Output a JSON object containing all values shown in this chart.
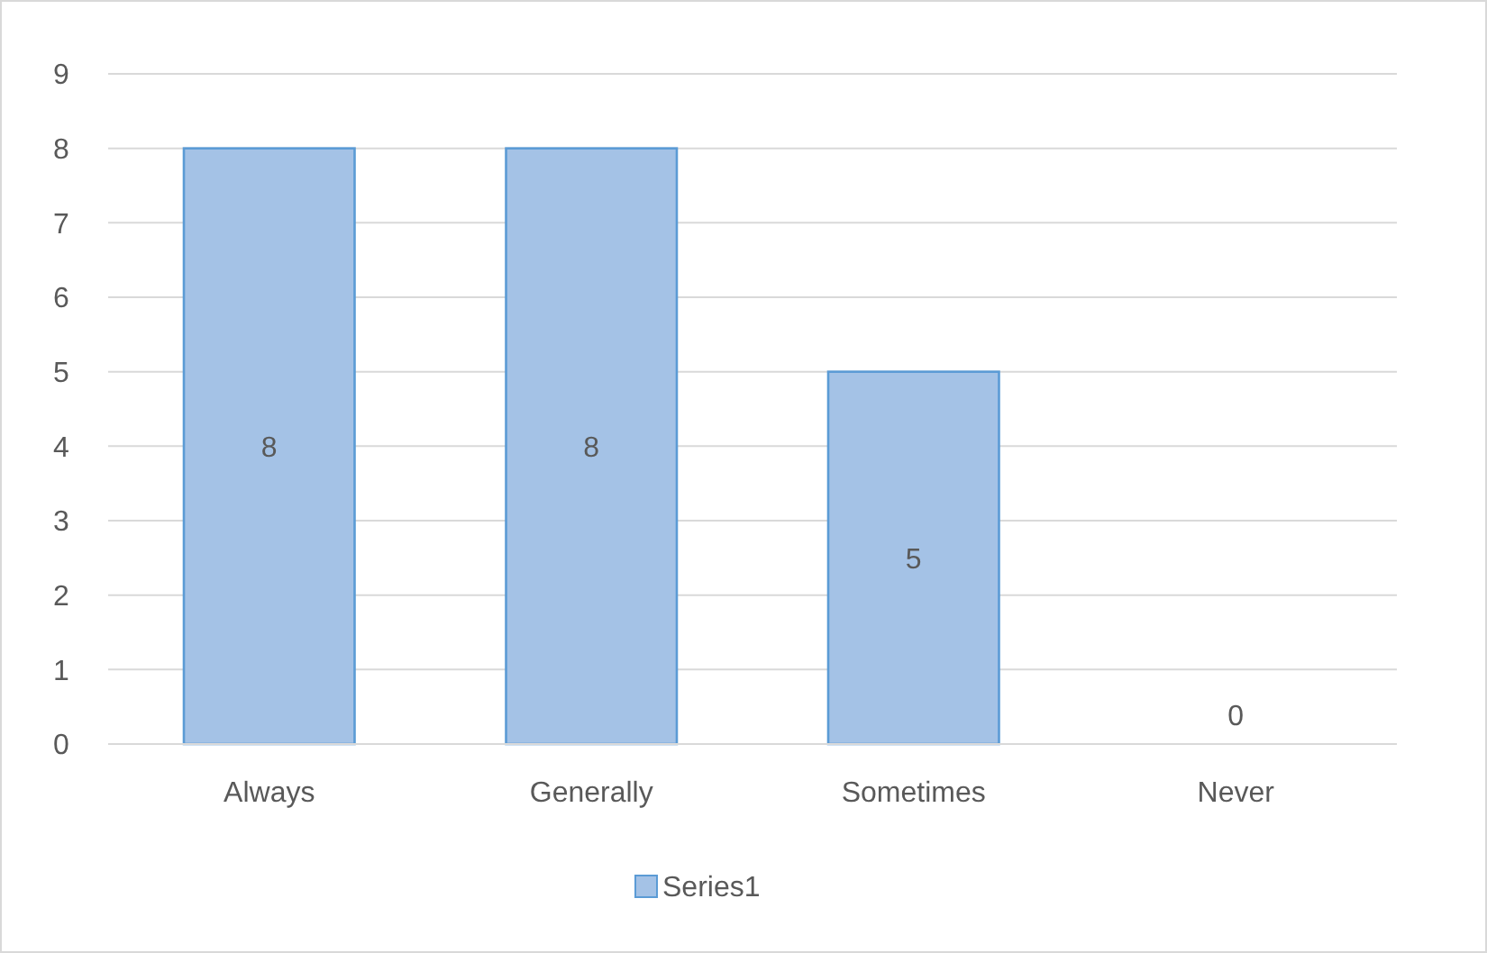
{
  "chart_data": {
    "type": "bar",
    "categories": [
      "Always",
      "Generally",
      "Sometimes",
      "Never"
    ],
    "series": [
      {
        "name": "Series1",
        "color": "#a4c2e6",
        "values": [
          8,
          8,
          5,
          0
        ]
      }
    ],
    "ylim": [
      0,
      9
    ],
    "yticks": [
      0,
      1,
      2,
      3,
      4,
      5,
      6,
      7,
      8,
      9
    ],
    "grid": "y",
    "legend": "bottom",
    "data_labels": true
  }
}
